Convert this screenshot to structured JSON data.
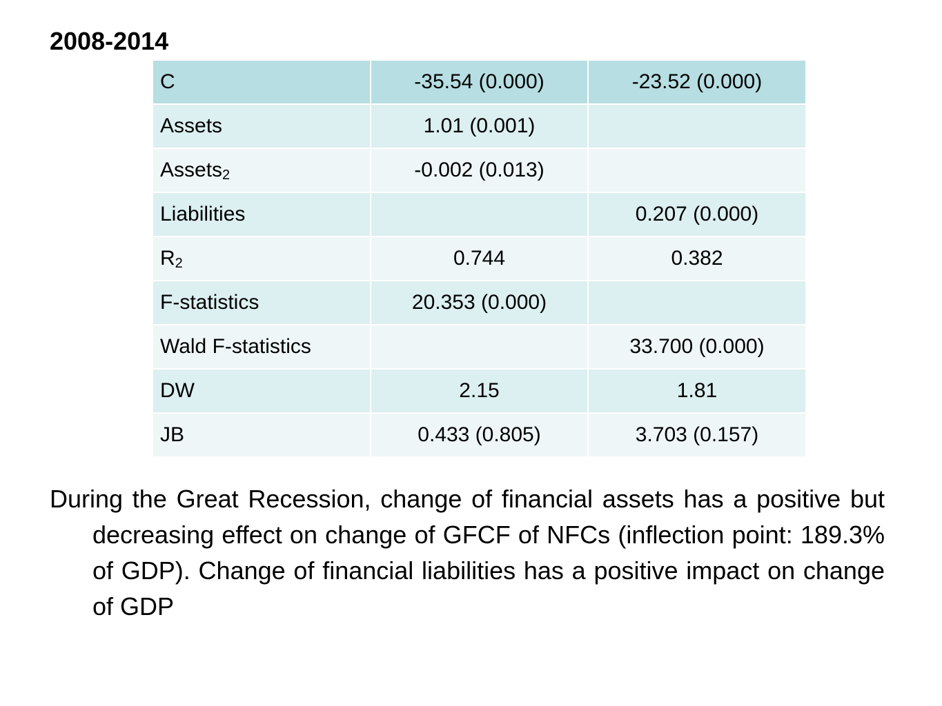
{
  "title": "2008-2014",
  "table": {
    "rows": [
      {
        "label": "C",
        "label_sub": "",
        "col1": "-35.54 (0.000)",
        "col2": "-23.52 (0.000)"
      },
      {
        "label": "Assets",
        "label_sub": "",
        "col1": "1.01 (0.001)",
        "col2": ""
      },
      {
        "label": "Assets",
        "label_sub": "2",
        "col1": "-0.002 (0.013)",
        "col2": ""
      },
      {
        "label": "Liabilities",
        "label_sub": "",
        "col1": "",
        "col2": "0.207 (0.000)"
      },
      {
        "label": "R",
        "label_sub": "2",
        "col1": "0.744",
        "col2": "0.382"
      },
      {
        "label": "F-statistics",
        "label_sub": "",
        "col1": "20.353 (0.000)",
        "col2": ""
      },
      {
        "label": "Wald F-statistics",
        "label_sub": "",
        "col1": "",
        "col2": "33.700 (0.000)"
      },
      {
        "label": "DW",
        "label_sub": "",
        "col1": "2.15",
        "col2": "1.81"
      },
      {
        "label": "JB",
        "label_sub": "",
        "col1": "0.433 (0.805)",
        "col2": "3.703 (0.157)"
      }
    ]
  },
  "body_text": "During the Great Recession, change of financial assets has a positive but decreasing effect on change of GFCF of NFCs (inflection point: 189.3% of GDP). Change of financial liabilities has a positive impact on change of GDP",
  "colors": {
    "header_row": "#b7dee2",
    "odd_row": "#dceff1",
    "even_row": "#eef6f8"
  }
}
